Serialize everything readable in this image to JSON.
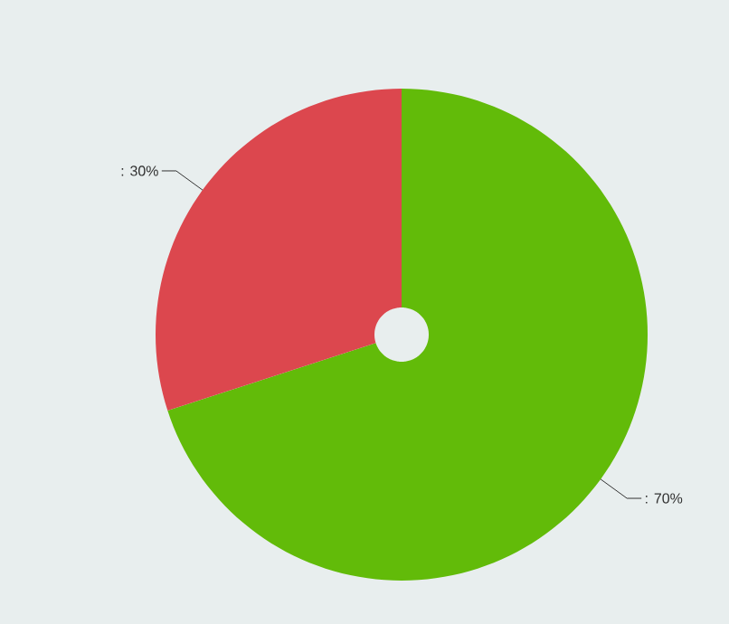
{
  "chart_data": {
    "type": "pie",
    "categories": [
      null,
      null
    ],
    "values": [
      70,
      30
    ],
    "colors": [
      "#62bb09",
      "#dc474e"
    ],
    "value_labels": [
      ": 70%",
      ": 30%"
    ]
  }
}
